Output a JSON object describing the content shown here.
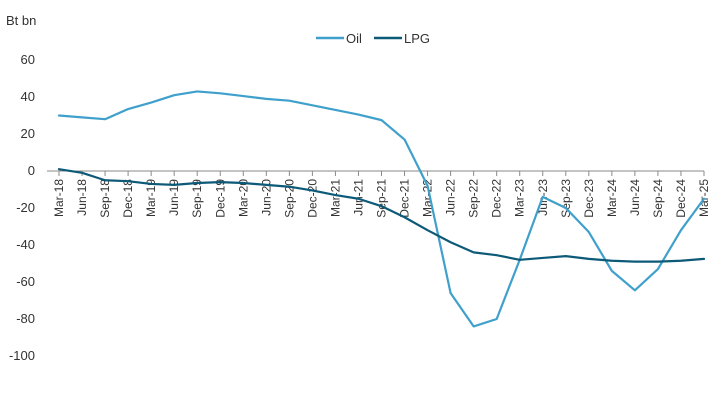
{
  "chart_data": {
    "type": "line",
    "unit_label": "Bt bn",
    "legend_position": "top-center",
    "grid": false,
    "ylim": [
      -100,
      60
    ],
    "yticks": [
      60,
      40,
      20,
      0,
      -20,
      -40,
      -60,
      -80,
      -100
    ],
    "categories": [
      "Mar-18",
      "Jun-18",
      "Sep-18",
      "Dec-18",
      "Mar-19",
      "Jun-19",
      "Sep-19",
      "Dec-19",
      "Mar-20",
      "Jun-20",
      "Sep-20",
      "Dec-20",
      "Mar-21",
      "Jun-21",
      "Sep-21",
      "Dec-21",
      "Mar-22",
      "Jun-22",
      "Sep-22",
      "Dec-22",
      "Mar-23",
      "Jun-23",
      "Sep-23",
      "Dec-23",
      "Mar-24",
      "Jun-24",
      "Sep-24",
      "Dec-24",
      "Mar-25"
    ],
    "series": [
      {
        "name": "Oil",
        "color": "#3fa0cc",
        "values": [
          30,
          29,
          28,
          33.5,
          37,
          41,
          43,
          42,
          40.5,
          39,
          38,
          35.5,
          33,
          30.5,
          27.5,
          17,
          -8,
          -66,
          -84,
          -80,
          -48,
          -14,
          -20,
          -33,
          -54,
          -64.5,
          -53,
          -32,
          -15
        ]
      },
      {
        "name": "LPG",
        "color": "#0d5a78",
        "values": [
          1,
          -1,
          -5,
          -5.5,
          -7,
          -7.5,
          -6.5,
          -6,
          -6.5,
          -7.5,
          -8.5,
          -10.5,
          -13,
          -15,
          -19,
          -25,
          -32,
          -38.5,
          -44,
          -45.5,
          -48,
          -47,
          -46,
          -47.5,
          -48.5,
          -49,
          -49,
          -48.5,
          -47.5
        ]
      }
    ]
  }
}
